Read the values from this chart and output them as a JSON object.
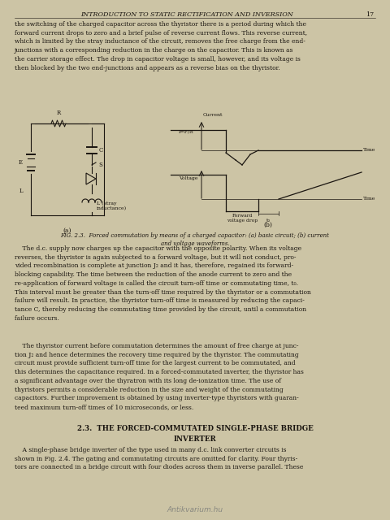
{
  "page_header": "INTRODUCTION TO STATIC RECTIFICATION AND INVERSION",
  "page_number": "17",
  "bg_color": "#ccc4a5",
  "text_color": "#1a1510",
  "header_fontsize": 5.8,
  "body_fontsize": 5.5,
  "small_fontsize": 4.8,
  "caption_fontsize": 5.0,
  "section_fontsize": 6.2,
  "paragraph1": "the switching of the charged capacitor across the thyristor there is a period during which the\nforward current drops to zero and a brief pulse of reverse current flows. This reverse current,\nwhich is limited by the stray inductance of the circuit, removes the free charge from the end-\njunctions with a corresponding reduction in the charge on the capacitor. This is known as\nthe carrier storage effect. The drop in capacitor voltage is small, however, and its voltage is\nthen blocked by the two end-junctions and appears as a reverse bias on the thyristor.",
  "fig_caption": "FIG. 2.3.  Forced commutation by means of a charged capacitor: (a) basic circuit; (b) current\nand voltage waveforms.",
  "paragraph2": "    The d.c. supply now charges up the capacitor with the opposite polarity. When its voltage\nreverses, the thyristor is again subjected to a forward voltage, but it will not conduct, pro-\nvided recombination is complete at junction J₂ and it has, therefore, regained its forward-\nblocking capability. The time between the reduction of the anode current to zero and the\nre-application of forward voltage is called the circuit turn-off time or commutating time, t₀.\nThis interval must be greater than the turn-off time required by the thyristor or a commutation\nfailure will result. In practice, the thyristor turn-off time is measured by reducing the capaci-\ntance C, thereby reducing the commutating time provided by the circuit, until a commutation\nfailure occurs.",
  "paragraph3": "    The thyristor current before commutation determines the amount of free charge at junc-\ntion J₂ and hence determines the recovery time required by the thyristor. The commutating\ncircuit must provide sufficient turn-off time for the largest current to be commutated, and\nthis determines the capacitance required. In a forced-commutated inverter, the thyristor has\na significant advantage over the thyratron with its long de-ionization time. The use of\nthyristors permits a considerable reduction in the size and weight of the commutating\ncapacitors. Further improvement is obtained by using inverter-type thyristors with guaran-\nteed maximum turn-off times of 10 microseconds, or less.",
  "section_title": "2.3.  THE FORCED-COMMUTATED SINGLE-PHASE BRIDGE\nINVERTER",
  "paragraph4": "    A single-phase bridge inverter of the type used in many d.c. link converter circuits is\nshown in Fig. 2.4. The gating and commutating circuits are omitted for clarity. Four thyris-\ntors are connected in a bridge circuit with four diodes across them in inverse parallel. These"
}
